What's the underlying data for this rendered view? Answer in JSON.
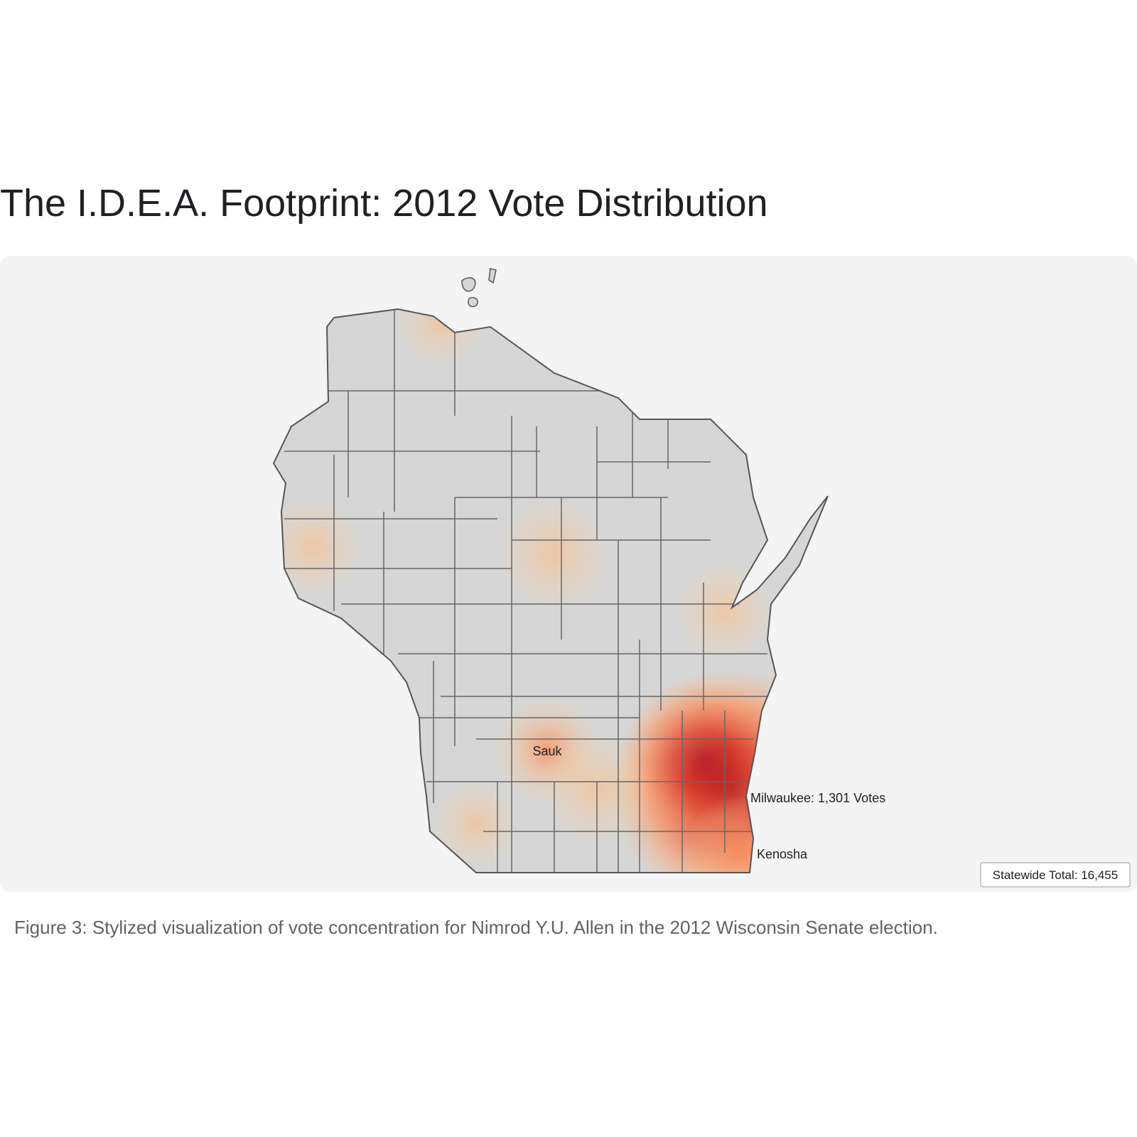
{
  "header": {
    "title": "The I.D.E.A. Footprint: 2012 Vote Distribution"
  },
  "map": {
    "labels": [
      "Sauk",
      "Milwaukee: 1,301 Votes",
      "Kenosha"
    ],
    "total": "Statewide Total: 16,455"
  },
  "caption": "Figure 3: Stylized visualization of vote concentration for Nimrod Y.U. Allen in the 2012 Wisconsin Senate election."
}
